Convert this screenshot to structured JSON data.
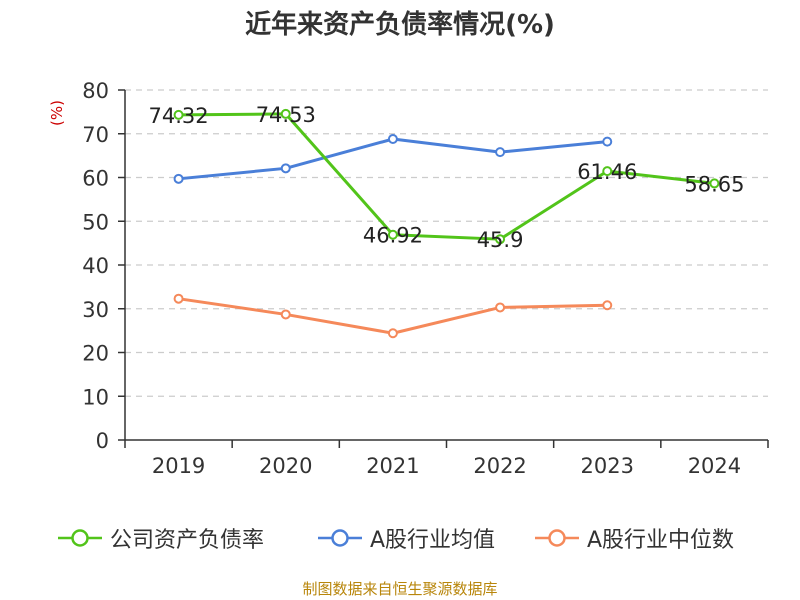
{
  "title": "近年来资产负债率情况(%)",
  "source": "制图数据来自恒生聚源数据库",
  "chart_data": {
    "type": "line",
    "title": "近年来资产负债率情况(%)",
    "ylabel": "(%)",
    "xlabel": "",
    "categories": [
      "2019",
      "2020",
      "2021",
      "2022",
      "2023",
      "2024"
    ],
    "ylim": [
      0,
      80
    ],
    "yticks": [
      0,
      10,
      20,
      30,
      40,
      50,
      60,
      70,
      80
    ],
    "grid": true,
    "legend_position": "bottom",
    "series": [
      {
        "name": "公司资产负债率",
        "color": "#52c41a",
        "values": [
          74.32,
          74.53,
          46.92,
          45.9,
          61.46,
          58.65
        ],
        "labels": [
          "74.32",
          "74.53",
          "46.92",
          "45.9",
          "61.46",
          "58.65"
        ]
      },
      {
        "name": "A股行业均值",
        "color": "#4a7fd8",
        "values": [
          59.7,
          62.1,
          68.8,
          65.8,
          68.2,
          null
        ]
      },
      {
        "name": "A股行业中位数",
        "color": "#f5895a",
        "values": [
          32.3,
          28.7,
          24.4,
          30.3,
          30.8,
          null
        ]
      }
    ]
  }
}
